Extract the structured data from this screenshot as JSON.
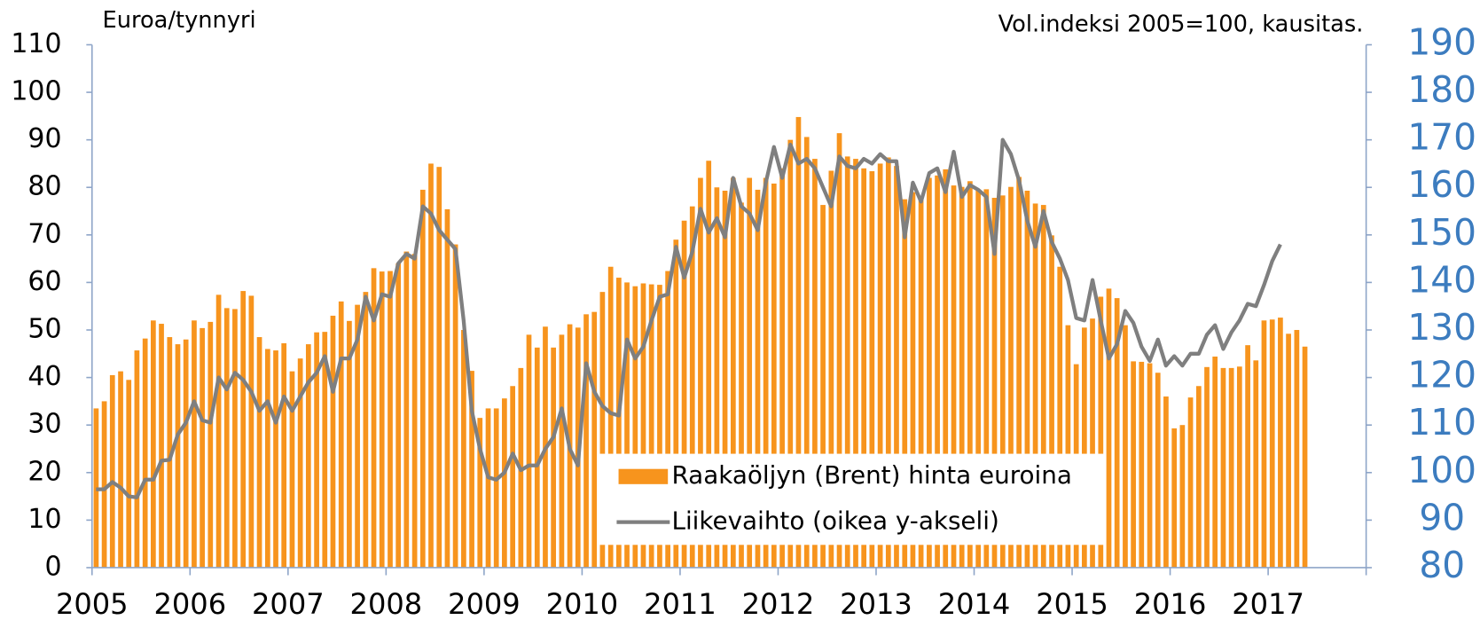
{
  "chart_data": {
    "type": "bar-line",
    "ylabel": "Euroa/tynnyri",
    "y2label": "Vol.indeksi 2005=100, kausitas.",
    "xlim": [
      2005,
      2018
    ],
    "xticks": [
      2005,
      2006,
      2007,
      2008,
      2009,
      2010,
      2011,
      2012,
      2013,
      2014,
      2015,
      2016,
      2017
    ],
    "ylim": [
      0,
      110
    ],
    "yticks": [
      0,
      10,
      20,
      30,
      40,
      50,
      60,
      70,
      80,
      90,
      100,
      110
    ],
    "y2lim": [
      80,
      190
    ],
    "y2ticks": [
      80,
      90,
      100,
      110,
      120,
      130,
      140,
      150,
      160,
      170,
      180,
      190
    ],
    "grid": false,
    "legend": "lower center",
    "x": [
      2005.042,
      2005.125,
      2005.208,
      2005.292,
      2005.375,
      2005.458,
      2005.542,
      2005.625,
      2005.708,
      2005.792,
      2005.875,
      2005.958,
      2006.042,
      2006.125,
      2006.208,
      2006.292,
      2006.375,
      2006.458,
      2006.542,
      2006.625,
      2006.708,
      2006.792,
      2006.875,
      2006.958,
      2007.042,
      2007.125,
      2007.208,
      2007.292,
      2007.375,
      2007.458,
      2007.542,
      2007.625,
      2007.708,
      2007.792,
      2007.875,
      2007.958,
      2008.042,
      2008.125,
      2008.208,
      2008.292,
      2008.375,
      2008.458,
      2008.542,
      2008.625,
      2008.708,
      2008.792,
      2008.875,
      2008.958,
      2009.042,
      2009.125,
      2009.208,
      2009.292,
      2009.375,
      2009.458,
      2009.542,
      2009.625,
      2009.708,
      2009.792,
      2009.875,
      2009.958,
      2010.042,
      2010.125,
      2010.208,
      2010.292,
      2010.375,
      2010.458,
      2010.542,
      2010.625,
      2010.708,
      2010.792,
      2010.875,
      2010.958,
      2011.042,
      2011.125,
      2011.208,
      2011.292,
      2011.375,
      2011.458,
      2011.542,
      2011.625,
      2011.708,
      2011.792,
      2011.875,
      2011.958,
      2012.042,
      2012.125,
      2012.208,
      2012.292,
      2012.375,
      2012.458,
      2012.542,
      2012.625,
      2012.708,
      2012.792,
      2012.875,
      2012.958,
      2013.042,
      2013.125,
      2013.208,
      2013.292,
      2013.375,
      2013.458,
      2013.542,
      2013.625,
      2013.708,
      2013.792,
      2013.875,
      2013.958,
      2014.042,
      2014.125,
      2014.208,
      2014.292,
      2014.375,
      2014.458,
      2014.542,
      2014.625,
      2014.708,
      2014.792,
      2014.875,
      2014.958,
      2015.042,
      2015.125,
      2015.208,
      2015.292,
      2015.375,
      2015.458,
      2015.542,
      2015.625,
      2015.708,
      2015.792,
      2015.875,
      2015.958,
      2016.042,
      2016.125,
      2016.208,
      2016.292,
      2016.375,
      2016.458,
      2016.542,
      2016.625,
      2016.708,
      2016.792,
      2016.875,
      2016.958,
      2017.042,
      2017.125,
      2017.208,
      2017.292,
      2017.375
    ],
    "series": [
      {
        "name": "Raakaöljyn (Brent) hinta euroina",
        "type": "bar",
        "color": "#f7941d",
        "values": [
          33.5,
          35,
          40.5,
          41.3,
          39.5,
          45.7,
          48.2,
          52,
          51.3,
          48.5,
          47,
          48,
          52,
          50.4,
          51.7,
          57.4,
          54.6,
          54.4,
          58.2,
          57.2,
          48.5,
          46,
          45.7,
          47.2,
          41.3,
          44,
          47,
          49.5,
          49.6,
          53,
          56,
          51.9,
          55.3,
          58,
          63,
          62.3,
          62.4,
          64,
          66.5,
          66,
          79.5,
          85,
          84.3,
          75.4,
          68,
          50,
          41.4,
          31.5,
          33.5,
          33.5,
          35.6,
          38.2,
          42,
          49,
          46.3,
          50.7,
          46.3,
          49,
          51.2,
          50.5,
          53.3,
          53.8,
          58,
          63.3,
          61,
          60,
          59.2,
          59.8,
          59.6,
          59.5,
          62.4,
          69,
          73,
          76,
          82,
          85.6,
          80,
          79.3,
          82,
          76.8,
          82,
          79.5,
          82,
          80.8,
          84,
          90,
          94.8,
          90.6,
          86,
          76.3,
          83.5,
          91.4,
          86.5,
          86,
          84,
          83.4,
          85,
          86.3,
          84.5,
          77.5,
          79,
          78.2,
          82,
          82.5,
          83.8,
          80.4,
          80.1,
          81.3,
          79.5,
          79.6,
          77.8,
          78.3,
          80.1,
          82.2,
          79.3,
          76.6,
          76.3,
          69.9,
          63.3,
          51,
          42.8,
          50.5,
          52.4,
          57,
          58.7,
          56.7,
          51,
          43.4,
          43.3,
          43,
          41,
          36,
          29.3,
          30,
          35.8,
          38.2,
          42.2,
          44.4,
          42,
          42,
          42.3,
          46.8,
          43.6,
          52,
          52.2,
          52.6,
          49.2,
          50,
          46.5
        ]
      },
      {
        "name": "Liikevaihto (oikea y-akseli)",
        "type": "line",
        "axis": "y2",
        "color": "#7f7f7f",
        "values": [
          96.5,
          96.5,
          98,
          96.8,
          95,
          94.8,
          98.5,
          98.5,
          102.5,
          102.7,
          108,
          110.5,
          115,
          111,
          110.5,
          120,
          117.5,
          121,
          119.5,
          117,
          113,
          115,
          110.5,
          116,
          113,
          116,
          119,
          121,
          124.5,
          117,
          124,
          124,
          128,
          137,
          132,
          137.5,
          137,
          144,
          146,
          145,
          156,
          154.5,
          151,
          149,
          147,
          132,
          113,
          105,
          99,
          98.5,
          100,
          104,
          100.5,
          101.5,
          101.5,
          105,
          107.5,
          113.5,
          105,
          101.5,
          123,
          117,
          114,
          112.5,
          112,
          128,
          124,
          126.5,
          132,
          137,
          137.5,
          147.5,
          141,
          146.5,
          155.5,
          150.5,
          153.5,
          149.5,
          162,
          156,
          154.5,
          151,
          161,
          168.5,
          162,
          169,
          165,
          166,
          164,
          160,
          156,
          166.5,
          164.5,
          164,
          166,
          165,
          167,
          165.5,
          165.5,
          149.5,
          161,
          157,
          163,
          164,
          159,
          167.5,
          158,
          160.5,
          159.5,
          158,
          146,
          170,
          167,
          161.5,
          153,
          147.5,
          155,
          148.5,
          145,
          140.5,
          132.5,
          132,
          140.5,
          132,
          124,
          127,
          134,
          131.5,
          126.5,
          123.5,
          128,
          122.5,
          124.5,
          122.5,
          125,
          125,
          129,
          131,
          126,
          129.5,
          132,
          135.5,
          135,
          139.5,
          144.5,
          148,
          null,
          null,
          null
        ]
      }
    ]
  }
}
